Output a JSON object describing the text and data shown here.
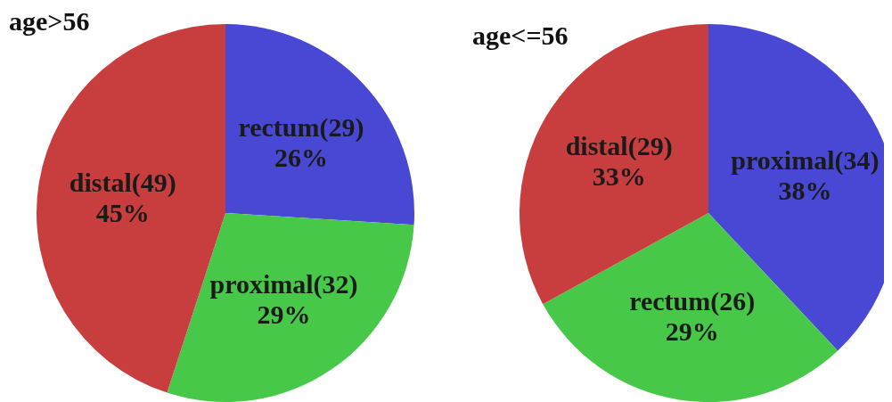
{
  "chart_data": [
    {
      "type": "pie",
      "title": "age>56",
      "categories": [
        "rectum(29)",
        "proximal(32)",
        "distal(49)"
      ],
      "values": [
        26,
        29,
        45
      ],
      "colors": [
        "#4848d4",
        "#48c848",
        "#c83e3e"
      ],
      "value_labels": [
        "26%",
        "29%",
        "45%"
      ]
    },
    {
      "type": "pie",
      "title": "age<=56",
      "categories": [
        "proximal(34)",
        "rectum(26)",
        "distal(29)"
      ],
      "values": [
        38,
        29,
        33
      ],
      "colors": [
        "#4848d4",
        "#48c848",
        "#c83e3e"
      ],
      "value_labels": [
        "38%",
        "29%",
        "33%"
      ]
    }
  ]
}
